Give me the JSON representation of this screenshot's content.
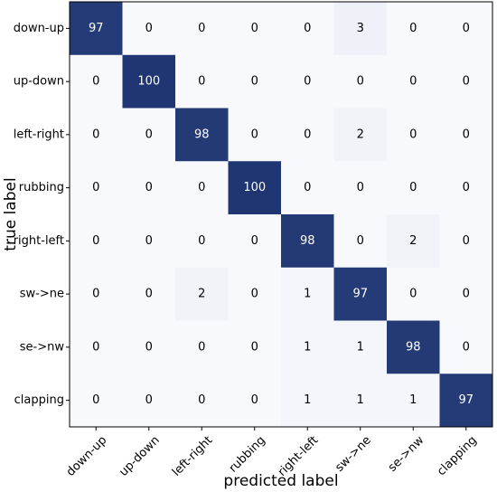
{
  "chart_data": {
    "type": "heatmap",
    "title": "",
    "xlabel": "predicted label",
    "ylabel": "true label",
    "x_categories": [
      "down-up",
      "up-down",
      "left-right",
      "rubbing",
      "right-left",
      "sw->ne",
      "se->nw",
      "clapping"
    ],
    "y_categories": [
      "down-up",
      "up-down",
      "left-right",
      "rubbing",
      "right-left",
      "sw->ne",
      "se->nw",
      "clapping"
    ],
    "values": [
      [
        97,
        0,
        0,
        0,
        0,
        3,
        0,
        0
      ],
      [
        0,
        100,
        0,
        0,
        0,
        0,
        0,
        0
      ],
      [
        0,
        0,
        98,
        0,
        0,
        2,
        0,
        0
      ],
      [
        0,
        0,
        0,
        100,
        0,
        0,
        0,
        0
      ],
      [
        0,
        0,
        0,
        0,
        98,
        0,
        2,
        0
      ],
      [
        0,
        0,
        2,
        0,
        1,
        97,
        0,
        0
      ],
      [
        0,
        0,
        0,
        0,
        1,
        1,
        98,
        0
      ],
      [
        0,
        0,
        0,
        0,
        1,
        1,
        1,
        97
      ]
    ],
    "value_range": [
      0,
      100
    ],
    "colormap": {
      "low": "#f7f9fd",
      "high": "#1f3673"
    },
    "grid": false,
    "legend": "none"
  }
}
